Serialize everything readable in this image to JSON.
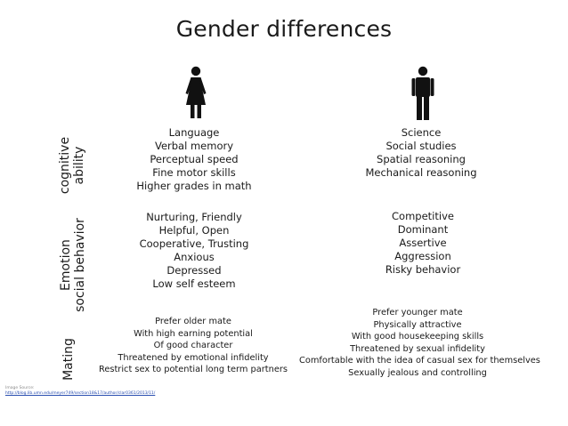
{
  "title": "Gender differences",
  "icons": {
    "female": "female-person-icon",
    "male": "male-person-icon"
  },
  "rows": [
    {
      "label_lines": [
        "cognitive",
        "ability"
      ],
      "female": [
        "Language",
        "Verbal memory",
        "Perceptual speed",
        "Fine motor skills",
        "Higher grades in math"
      ],
      "male": [
        "Science",
        "Social studies",
        "Spatial reasoning",
        "Mechanical reasoning"
      ]
    },
    {
      "label_lines": [
        "Emotion",
        "social behavior"
      ],
      "female": [
        "Nurturing, Friendly",
        "Helpful, Open",
        "Cooperative, Trusting",
        "Anxious",
        "Depressed",
        "Low self esteem"
      ],
      "male": [
        "Competitive",
        "Dominant",
        "Assertive",
        "Aggression",
        "Risky behavior"
      ]
    },
    {
      "label_lines": [
        "Mating"
      ],
      "female": [
        "Prefer older mate",
        "With high earning potential",
        "Of good character",
        "Threatened by emotional infidelity",
        "Restrict sex to potential long term partners"
      ],
      "male": [
        "Prefer younger mate",
        "Physically attractive",
        "With good housekeeping skills",
        "Threatened by sexual infidelity",
        "Comfortable with the idea of casual sex for themselves",
        "Sexually jealous and controlling"
      ]
    }
  ],
  "credit": {
    "label": "Image Source:",
    "url": "http://blog.lib.umn.edu/meyer749/section18&17/author/clar0361/2013/11/"
  }
}
